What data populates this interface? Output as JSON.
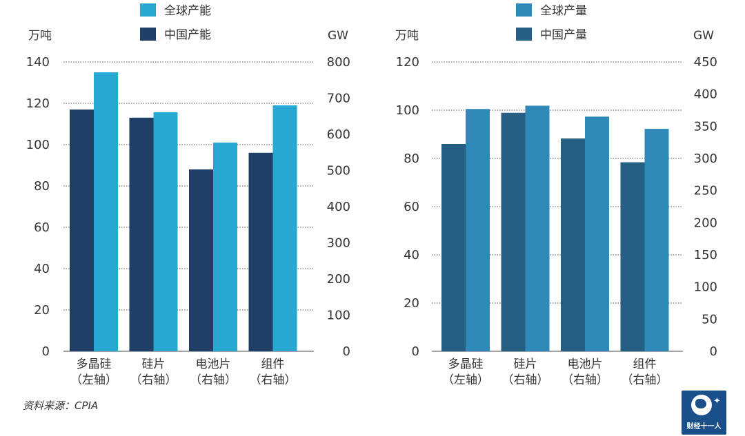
{
  "chart_data": [
    {
      "type": "bar",
      "legend": [
        "全球产能",
        "中国产能"
      ],
      "unit_left": "万吨",
      "unit_right": "GW",
      "categories": [
        [
          "多晶硅",
          "（左轴）"
        ],
        [
          "硅片",
          "（右轴）"
        ],
        [
          "电池片",
          "（右轴）"
        ],
        [
          "组件",
          "（右轴）"
        ]
      ],
      "left_ticks": [
        0,
        20,
        40,
        60,
        80,
        100,
        120,
        140
      ],
      "right_ticks": [
        0,
        100,
        200,
        300,
        400,
        500,
        600,
        700,
        800
      ],
      "ylim_left": [
        0,
        140
      ],
      "ylim_right": [
        0,
        800
      ],
      "series": [
        {
          "name": "中国产能",
          "color": "#1f3f66",
          "values": [
            117,
            646,
            503,
            549
          ]
        },
        {
          "name": "全球产能",
          "color": "#27a8d0",
          "values": [
            135,
            661,
            577,
            680
          ]
        }
      ],
      "axes": [
        "left",
        "right",
        "right",
        "right"
      ],
      "grid": true
    },
    {
      "type": "bar",
      "legend": [
        "全球产量",
        "中国产量"
      ],
      "unit_left": "万吨",
      "unit_right": "GW",
      "categories": [
        [
          "多晶硅",
          "（左轴）"
        ],
        [
          "硅片",
          "（右轴）"
        ],
        [
          "电池片",
          "（右轴）"
        ],
        [
          "组件",
          "（右轴）"
        ]
      ],
      "left_ticks": [
        0,
        20,
        40,
        60,
        80,
        100,
        120
      ],
      "right_ticks": [
        0,
        50,
        100,
        150,
        200,
        250,
        300,
        350,
        400,
        450
      ],
      "ylim_left": [
        0,
        120
      ],
      "ylim_right": [
        0,
        450
      ],
      "series": [
        {
          "name": "中国产量",
          "color": "#255f84",
          "values": [
            86,
            371,
            331,
            294
          ]
        },
        {
          "name": "全球产量",
          "color": "#2e88b8",
          "values": [
            100.5,
            382,
            365,
            346
          ]
        }
      ],
      "axes": [
        "left",
        "right",
        "right",
        "right"
      ],
      "grid": true
    }
  ],
  "source": "资料来源：CPIA",
  "logo_text": "财经十一人"
}
